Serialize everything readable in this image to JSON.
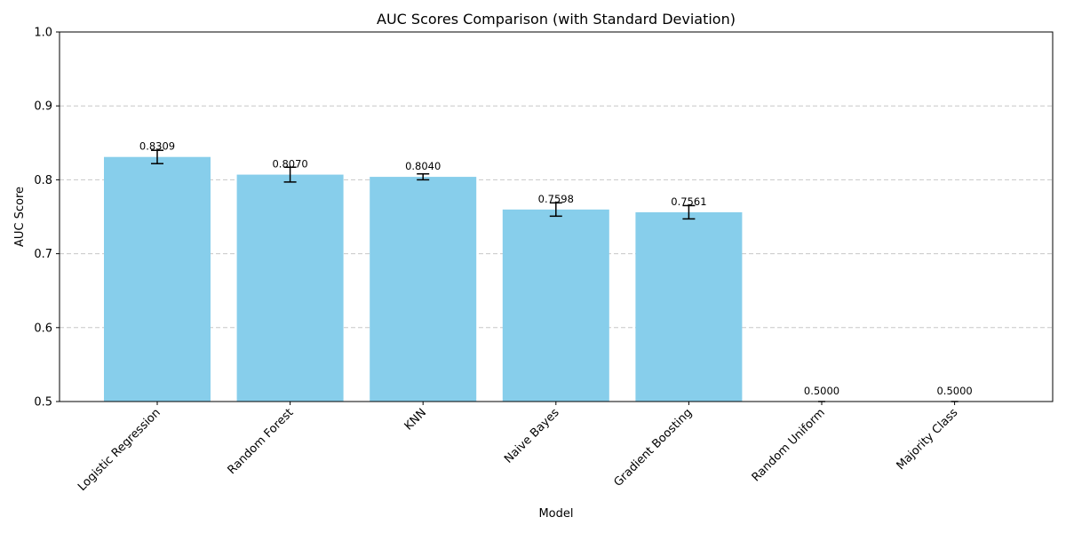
{
  "chart_data": {
    "type": "bar",
    "title": "AUC Scores Comparison (with Standard Deviation)",
    "xlabel": "Model",
    "ylabel": "AUC Score",
    "ylim": [
      0.5,
      1.0
    ],
    "yticks": [
      "0.5",
      "0.6",
      "0.7",
      "0.8",
      "0.9",
      "1.0"
    ],
    "grid": true,
    "bar_color": "#87CEEB",
    "categories": [
      "Logistic Regression",
      "Random Forest",
      "KNN",
      "Naive Bayes",
      "Gradient Boosting",
      "Random Uniform",
      "Majority Class"
    ],
    "values": [
      0.8309,
      0.807,
      0.804,
      0.7598,
      0.7561,
      0.5,
      0.5
    ],
    "value_labels": [
      "0.8309",
      "0.8070",
      "0.8040",
      "0.7598",
      "0.7561",
      "0.5000",
      "0.5000"
    ],
    "errors": [
      0.009,
      0.01,
      0.004,
      0.009,
      0.009,
      0,
      0
    ]
  }
}
